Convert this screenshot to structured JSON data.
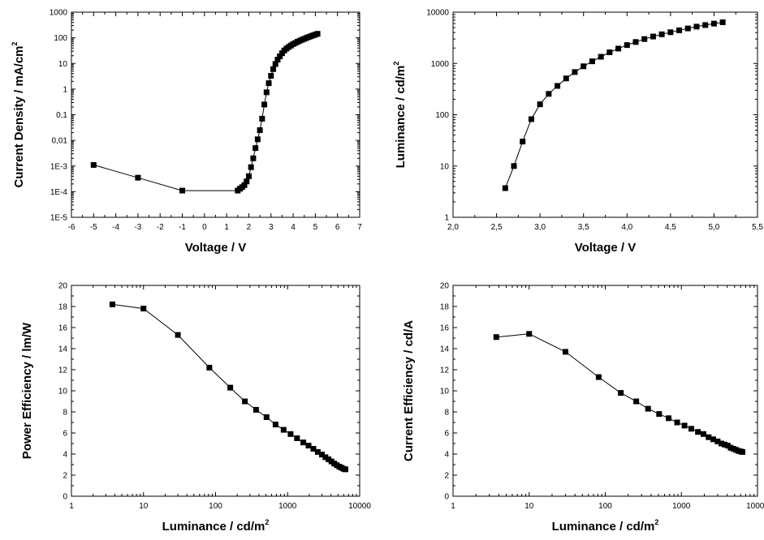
{
  "chart_data": [
    {
      "type": "scatter",
      "title": "",
      "xlabel": "Voltage / V",
      "ylabel": "Current Density / mA/cm",
      "ylabel_sup": "2",
      "x_scale": "linear",
      "y_scale": "log",
      "xlim": [
        -6,
        7
      ],
      "ylim": [
        1e-05,
        1000
      ],
      "grid": false,
      "marker": "square",
      "line": true,
      "x_tick_labels": [
        "-6",
        "-5",
        "-4",
        "-3",
        "-2",
        "-1",
        "0",
        "1",
        "2",
        "3",
        "4",
        "5",
        "6",
        "7"
      ],
      "y_tick_labels": [
        "1E-5",
        "1E-4",
        "1E-3",
        "0,01",
        "0,1",
        "1",
        "10",
        "100",
        "1000"
      ],
      "series": [
        {
          "points": [
            [
              -5,
              0.0011
            ],
            [
              -3,
              0.00035
            ],
            [
              -1,
              0.00011
            ],
            [
              1.5,
              0.00011
            ],
            [
              1.6,
              0.00013
            ],
            [
              1.7,
              0.00015
            ],
            [
              1.8,
              0.00018
            ],
            [
              1.9,
              0.00025
            ],
            [
              2.0,
              0.0004
            ],
            [
              2.1,
              0.0009
            ],
            [
              2.2,
              0.002
            ],
            [
              2.3,
              0.005
            ],
            [
              2.4,
              0.011
            ],
            [
              2.5,
              0.025
            ],
            [
              2.6,
              0.07
            ],
            [
              2.7,
              0.25
            ],
            [
              2.8,
              0.75
            ],
            [
              2.9,
              1.7
            ],
            [
              3.0,
              3.3
            ],
            [
              3.1,
              6
            ],
            [
              3.2,
              9.5
            ],
            [
              3.3,
              14
            ],
            [
              3.4,
              19
            ],
            [
              3.5,
              25
            ],
            [
              3.6,
              32
            ],
            [
              3.7,
              38
            ],
            [
              3.8,
              44
            ],
            [
              3.9,
              50
            ],
            [
              4.0,
              57
            ],
            [
              4.1,
              63
            ],
            [
              4.2,
              70
            ],
            [
              4.3,
              77
            ],
            [
              4.4,
              84
            ],
            [
              4.5,
              91
            ],
            [
              4.6,
              99
            ],
            [
              4.7,
              107
            ],
            [
              4.8,
              115
            ],
            [
              4.9,
              124
            ],
            [
              5.0,
              133
            ],
            [
              5.1,
              143
            ]
          ]
        }
      ]
    },
    {
      "type": "scatter",
      "title": "",
      "xlabel": "Voltage / V",
      "ylabel": "Luminance / cd/m",
      "ylabel_sup": "2",
      "x_scale": "linear",
      "y_scale": "log",
      "xlim": [
        2.0,
        5.5
      ],
      "ylim": [
        1,
        10000
      ],
      "grid": false,
      "marker": "square",
      "line": true,
      "x_tick_labels": [
        "2,0",
        "2,5",
        "3,0",
        "3,5",
        "4,0",
        "4,5",
        "5,0",
        "5,5"
      ],
      "y_tick_labels": [
        "1",
        "10",
        "100",
        "1000",
        "10000"
      ],
      "series": [
        {
          "points": [
            [
              2.6,
              3.7
            ],
            [
              2.7,
              10
            ],
            [
              2.8,
              30
            ],
            [
              2.9,
              82
            ],
            [
              3.0,
              160
            ],
            [
              3.1,
              255
            ],
            [
              3.2,
              365
            ],
            [
              3.3,
              510
            ],
            [
              3.4,
              680
            ],
            [
              3.5,
              880
            ],
            [
              3.6,
              1100
            ],
            [
              3.7,
              1350
            ],
            [
              3.8,
              1650
            ],
            [
              3.9,
              1950
            ],
            [
              4.0,
              2280
            ],
            [
              4.1,
              2620
            ],
            [
              4.2,
              2990
            ],
            [
              4.3,
              3350
            ],
            [
              4.4,
              3700
            ],
            [
              4.5,
              4060
            ],
            [
              4.6,
              4430
            ],
            [
              4.7,
              4820
            ],
            [
              4.8,
              5220
            ],
            [
              4.9,
              5600
            ],
            [
              5.0,
              5980
            ],
            [
              5.1,
              6350
            ]
          ]
        }
      ]
    },
    {
      "type": "scatter",
      "title": "",
      "xlabel": "Luminance / cd/m",
      "xlabel_sup": "2",
      "ylabel": "Power Efficiency / lm/W",
      "x_scale": "log",
      "y_scale": "linear",
      "xlim": [
        1,
        10000
      ],
      "ylim": [
        0,
        20
      ],
      "grid": false,
      "marker": "square",
      "line": true,
      "x_tick_labels": [
        "1",
        "10",
        "100",
        "1000",
        "10000"
      ],
      "y_tick_labels": [
        "0",
        "2",
        "4",
        "6",
        "8",
        "10",
        "12",
        "14",
        "16",
        "18",
        "20"
      ],
      "series": [
        {
          "points": [
            [
              3.7,
              18.2
            ],
            [
              10,
              17.8
            ],
            [
              30,
              15.3
            ],
            [
              82,
              12.2
            ],
            [
              160,
              10.3
            ],
            [
              255,
              9.0
            ],
            [
              365,
              8.2
            ],
            [
              510,
              7.5
            ],
            [
              680,
              6.8
            ],
            [
              880,
              6.3
            ],
            [
              1100,
              5.9
            ],
            [
              1350,
              5.5
            ],
            [
              1650,
              5.1
            ],
            [
              1950,
              4.8
            ],
            [
              2280,
              4.5
            ],
            [
              2620,
              4.2
            ],
            [
              2990,
              3.95
            ],
            [
              3350,
              3.7
            ],
            [
              3700,
              3.5
            ],
            [
              4060,
              3.3
            ],
            [
              4430,
              3.1
            ],
            [
              4820,
              2.95
            ],
            [
              5220,
              2.8
            ],
            [
              5600,
              2.7
            ],
            [
              5980,
              2.6
            ],
            [
              6350,
              2.55
            ]
          ]
        }
      ]
    },
    {
      "type": "scatter",
      "title": "",
      "xlabel": "Luminance / cd/m",
      "xlabel_sup": "2",
      "ylabel": "Current Efficiency / cd/A",
      "x_scale": "log",
      "y_scale": "linear",
      "xlim": [
        1,
        10000
      ],
      "ylim": [
        0,
        20
      ],
      "grid": false,
      "marker": "square",
      "line": true,
      "x_tick_labels": [
        "1",
        "10",
        "100",
        "1000",
        "10000"
      ],
      "y_tick_labels": [
        "0",
        "2",
        "4",
        "6",
        "8",
        "10",
        "12",
        "14",
        "16",
        "18",
        "20"
      ],
      "series": [
        {
          "points": [
            [
              3.7,
              15.1
            ],
            [
              10,
              15.4
            ],
            [
              30,
              13.7
            ],
            [
              82,
              11.3
            ],
            [
              160,
              9.8
            ],
            [
              255,
              9.0
            ],
            [
              365,
              8.3
            ],
            [
              510,
              7.8
            ],
            [
              680,
              7.4
            ],
            [
              880,
              7.0
            ],
            [
              1100,
              6.7
            ],
            [
              1350,
              6.4
            ],
            [
              1650,
              6.1
            ],
            [
              1950,
              5.9
            ],
            [
              2280,
              5.6
            ],
            [
              2620,
              5.4
            ],
            [
              2990,
              5.2
            ],
            [
              3350,
              5.0
            ],
            [
              3700,
              4.9
            ],
            [
              4060,
              4.8
            ],
            [
              4430,
              4.6
            ],
            [
              4820,
              4.5
            ],
            [
              5220,
              4.4
            ],
            [
              5600,
              4.3
            ],
            [
              5980,
              4.25
            ],
            [
              6350,
              4.2
            ]
          ]
        }
      ]
    }
  ]
}
